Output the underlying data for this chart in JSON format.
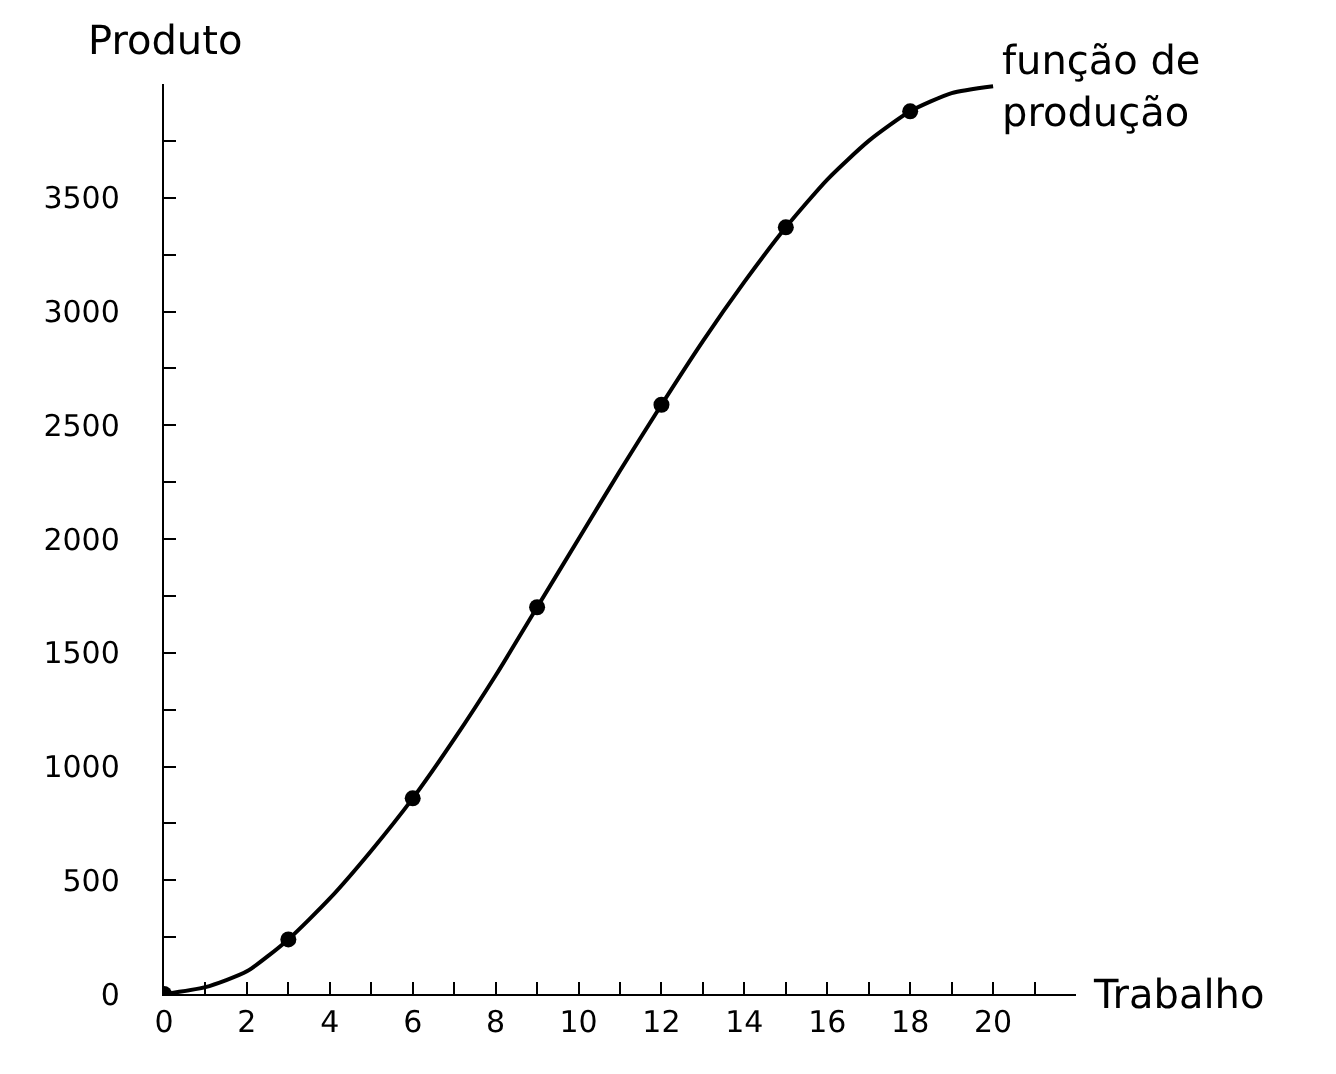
{
  "chart_data": {
    "type": "line",
    "xlabel": "Trabalho",
    "ylabel": "Produto",
    "annotations": [
      {
        "text": "função de\nprodução",
        "x": 20,
        "y": 3990
      }
    ],
    "xlim": [
      0,
      22
    ],
    "ylim": [
      0,
      4000
    ],
    "xticks": [
      0,
      {
        "value": 1,
        "label": null
      },
      2,
      {
        "value": 3,
        "label": null
      },
      4,
      {
        "value": 5,
        "label": null
      },
      6,
      {
        "value": 7,
        "label": null
      },
      8,
      {
        "value": 9,
        "label": null
      },
      10,
      {
        "value": 11,
        "label": null
      },
      12,
      {
        "value": 13,
        "label": null
      },
      14,
      {
        "value": 15,
        "label": null
      },
      16,
      {
        "value": 17,
        "label": null
      },
      18,
      {
        "value": 19,
        "label": null
      },
      20,
      {
        "value": 21,
        "label": null
      }
    ],
    "yticks": [
      0,
      {
        "value": 250,
        "label": null
      },
      500,
      {
        "value": 750,
        "label": null
      },
      1000,
      {
        "value": 1250,
        "label": null
      },
      1500,
      {
        "value": 1750,
        "label": null
      },
      2000,
      {
        "value": 2250,
        "label": null
      },
      2500,
      {
        "value": 2750,
        "label": null
      },
      3000,
      {
        "value": 3250,
        "label": null
      },
      3500,
      {
        "value": 3750,
        "label": null
      }
    ],
    "grid": false,
    "series": [
      {
        "type": "line",
        "color": "#000000",
        "marker": "none",
        "line_style": "solid",
        "x": [
          0,
          1,
          2,
          3,
          4,
          5,
          6,
          7,
          8,
          9,
          10,
          11,
          12,
          13,
          14,
          15,
          16,
          17,
          18,
          19,
          20
        ],
        "values": [
          0,
          30,
          100,
          240,
          420,
          630,
          860,
          1120,
          1400,
          1700,
          2000,
          2300,
          2590,
          2870,
          3130,
          3370,
          3580,
          3750,
          3880,
          3960,
          3990
        ]
      },
      {
        "type": "scatter",
        "color": "#000000",
        "marker": "circle",
        "x": [
          0,
          3,
          6,
          9,
          12,
          15,
          18
        ],
        "values": [
          0,
          240,
          860,
          1700,
          2590,
          3370,
          3880
        ]
      }
    ]
  }
}
